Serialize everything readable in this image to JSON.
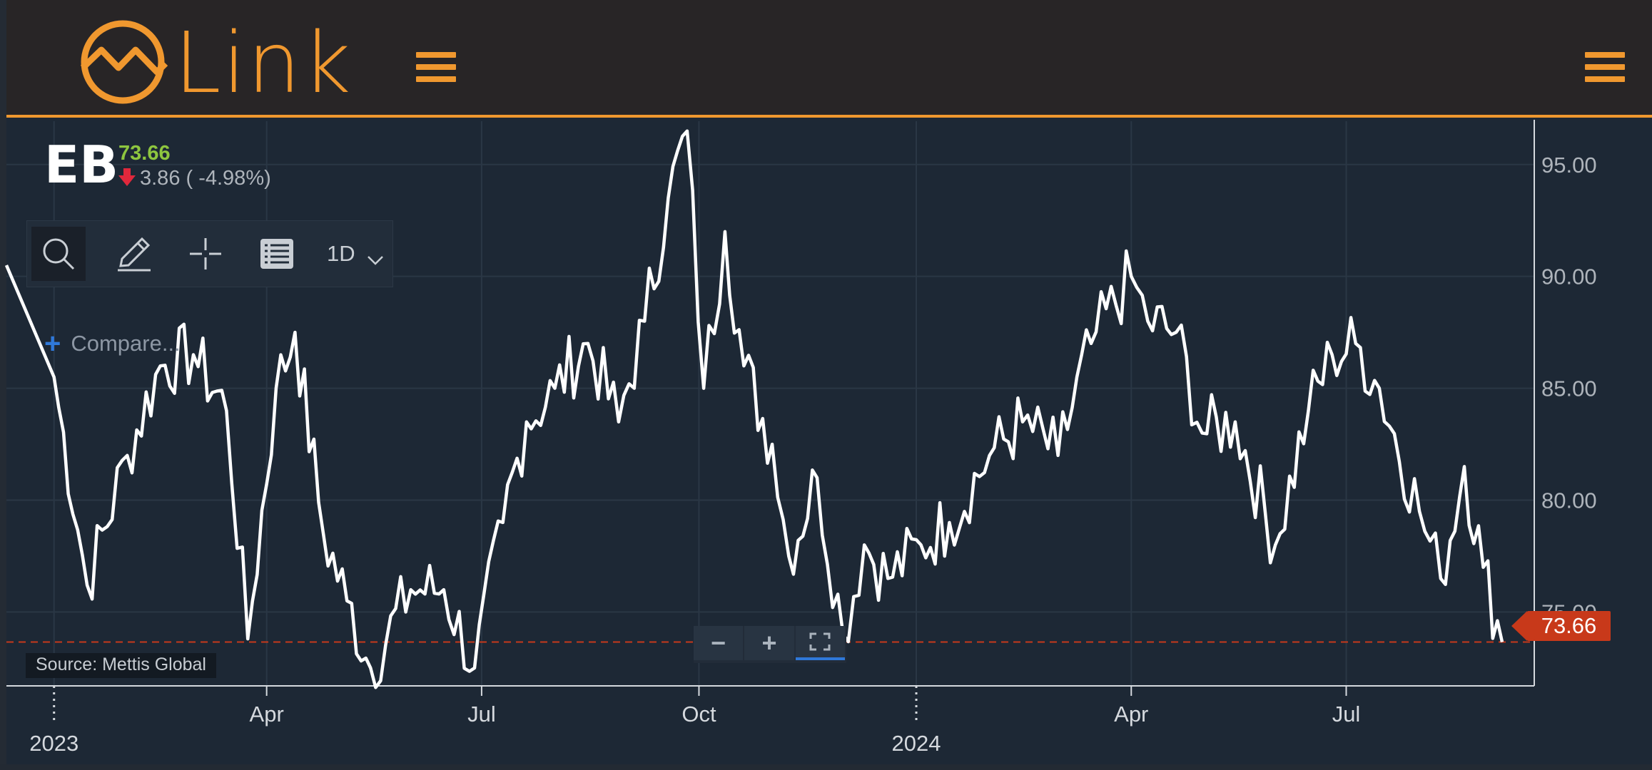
{
  "app": {
    "logo_text": "Link"
  },
  "quote": {
    "symbol": "EB",
    "last_price": "73.66",
    "change_text": "3.86 ( -4.98%)",
    "direction": "down",
    "price_color": "#8ec63f",
    "down_color": "#e0283c"
  },
  "toolbar": {
    "items": [
      {
        "name": "search-icon"
      },
      {
        "name": "pencil-icon"
      },
      {
        "name": "crosshair-icon"
      },
      {
        "name": "list-icon"
      }
    ],
    "interval": "1D"
  },
  "compare_label": "Compare...",
  "source_label": "Source: Mettis Global",
  "zoom_controls": {
    "minus": "−",
    "plus": "+"
  },
  "last_price_tag": "73.66",
  "colors": {
    "accent": "#f0982f",
    "background": "#1d2835",
    "line": "#ffffff",
    "price_tag": "#c8391a"
  },
  "chart_data": {
    "type": "line",
    "series": [
      {
        "x": [
          "2023-01-01",
          "2023-01-15",
          "2023-02-01",
          "2023-02-15",
          "2023-03-01",
          "2023-03-15",
          "2023-03-24",
          "2023-04-05",
          "2023-04-13",
          "2023-04-25",
          "2023-05-05",
          "2023-05-15",
          "2023-06-01",
          "2023-06-15",
          "2023-06-28",
          "2023-07-10",
          "2023-07-20",
          "2023-08-01",
          "2023-08-15",
          "2023-08-28",
          "2023-09-08",
          "2023-09-18",
          "2023-09-26",
          "2023-10-03",
          "2023-10-12",
          "2023-10-20",
          "2023-11-01",
          "2023-11-08",
          "2023-11-20",
          "2023-12-01",
          "2023-12-10",
          "2023-12-20",
          "2024-01-03",
          "2024-01-15",
          "2024-02-01",
          "2024-02-15",
          "2024-03-01",
          "2024-03-15",
          "2024-04-01",
          "2024-04-08",
          "2024-04-20",
          "2024-05-01",
          "2024-05-15",
          "2024-06-01",
          "2024-06-15",
          "2024-06-25",
          "2024-07-05",
          "2024-07-15",
          "2024-08-01",
          "2024-08-10",
          "2024-08-20",
          "2024-08-28",
          "2024-09-05"
        ],
        "y": [
          85.5,
          76.2,
          82.0,
          86.0,
          86.5,
          84.0,
          73.8,
          85.0,
          87.5,
          78.5,
          75.5,
          72.5,
          76.0,
          76.0,
          72.5,
          79.0,
          83.5,
          85.0,
          87.0,
          83.5,
          88.0,
          93.5,
          96.5,
          85.0,
          92.0,
          86.0,
          82.5,
          77.5,
          81.0,
          74.0,
          78.0,
          76.5,
          78.0,
          79.0,
          82.0,
          83.5,
          82.0,
          87.0,
          90.0,
          88.0,
          87.5,
          83.0,
          83.5,
          78.0,
          84.0,
          86.5,
          87.0,
          85.0,
          79.5,
          76.5,
          81.5,
          77.0,
          73.66
        ]
      }
    ],
    "x_tick_labels": [
      "Apr",
      "Jul",
      "Oct",
      "Apr",
      "Jul"
    ],
    "x_year_labels": [
      "2023",
      "2024"
    ],
    "y_ticks": [
      "95.00",
      "90.00",
      "85.00",
      "80.00",
      "75.00"
    ],
    "ylim": [
      71.7,
      97.0
    ],
    "last_value_line": 73.66,
    "grid": true,
    "y_axis_side": "right"
  }
}
